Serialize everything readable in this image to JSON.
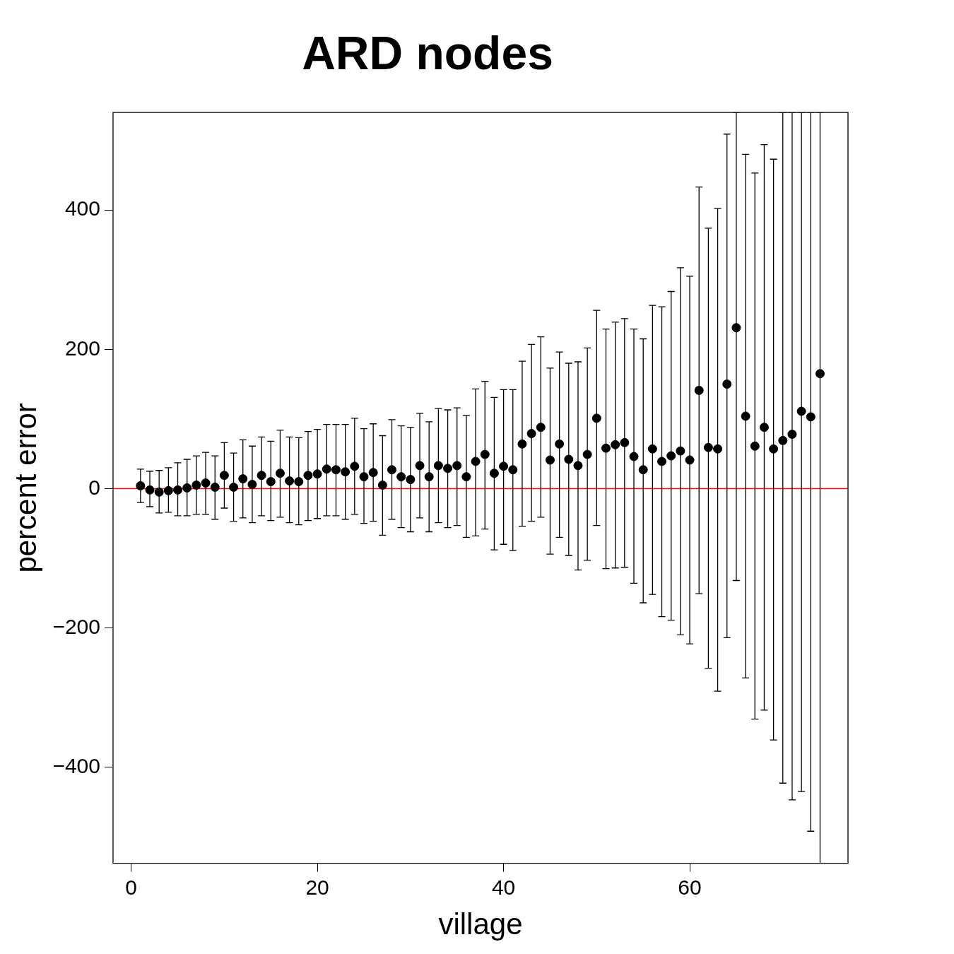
{
  "chart_data": {
    "type": "scatter",
    "title": "ARD nodes",
    "xlabel": "village",
    "ylabel": "percent error",
    "x": [
      1,
      2,
      3,
      4,
      5,
      6,
      7,
      8,
      9,
      10,
      11,
      12,
      13,
      14,
      15,
      16,
      17,
      18,
      19,
      20,
      21,
      22,
      23,
      24,
      25,
      26,
      27,
      28,
      29,
      30,
      31,
      32,
      33,
      34,
      35,
      36,
      37,
      38,
      39,
      40,
      41,
      42,
      43,
      44,
      45,
      46,
      47,
      48,
      49,
      50,
      51,
      52,
      53,
      54,
      55,
      56,
      57,
      58,
      59,
      60,
      61,
      62,
      63,
      64,
      65,
      66,
      67,
      68,
      69,
      70,
      71,
      72,
      73,
      74
    ],
    "series": [
      {
        "color": "#000000",
        "values": [
          4,
          -2,
          -5,
          -3,
          -2,
          1,
          5,
          8,
          2,
          19,
          2,
          14,
          6,
          19,
          10,
          22,
          11,
          10,
          19,
          21,
          28,
          27,
          24,
          32,
          17,
          23,
          5,
          27,
          17,
          13,
          33,
          17,
          33,
          29,
          33,
          17,
          39,
          49,
          22,
          32,
          27,
          64,
          79,
          88,
          41,
          64,
          42,
          33,
          49,
          101,
          58,
          63,
          66,
          46,
          27,
          57,
          39,
          47,
          54,
          41,
          141,
          59,
          57,
          150,
          231,
          104,
          61,
          88,
          57,
          69,
          78,
          111,
          103,
          165
        ],
        "errors": [
          [
            -20,
            28
          ],
          [
            -26,
            25
          ],
          [
            -35,
            26
          ],
          [
            -34,
            30
          ],
          [
            -39,
            37
          ],
          [
            -39,
            42
          ],
          [
            -37,
            47
          ],
          [
            -37,
            52
          ],
          [
            -44,
            47
          ],
          [
            -28,
            66
          ],
          [
            -47,
            51
          ],
          [
            -42,
            70
          ],
          [
            -49,
            61
          ],
          [
            -39,
            74
          ],
          [
            -46,
            68
          ],
          [
            -41,
            84
          ],
          [
            -49,
            74
          ],
          [
            -52,
            73
          ],
          [
            -46,
            82
          ],
          [
            -43,
            85
          ],
          [
            -39,
            92
          ],
          [
            -39,
            92
          ],
          [
            -44,
            92
          ],
          [
            -37,
            101
          ],
          [
            -50,
            86
          ],
          [
            -47,
            93
          ],
          [
            -67,
            76
          ],
          [
            -44,
            99
          ],
          [
            -56,
            90
          ],
          [
            -62,
            88
          ],
          [
            -42,
            108
          ],
          [
            -62,
            96
          ],
          [
            -49,
            115
          ],
          [
            -56,
            113
          ],
          [
            -53,
            116
          ],
          [
            -70,
            105
          ],
          [
            -68,
            143
          ],
          [
            -58,
            154
          ],
          [
            -88,
            131
          ],
          [
            -80,
            142
          ],
          [
            -89,
            142
          ],
          [
            -54,
            183
          ],
          [
            -47,
            207
          ],
          [
            -41,
            218
          ],
          [
            -94,
            173
          ],
          [
            -70,
            196
          ],
          [
            -96,
            180
          ],
          [
            -117,
            182
          ],
          [
            -103,
            202
          ],
          [
            -53,
            256
          ],
          [
            -115,
            229
          ],
          [
            -114,
            239
          ],
          [
            -113,
            244
          ],
          [
            -136,
            229
          ],
          [
            -164,
            215
          ],
          [
            -152,
            263
          ],
          [
            -184,
            261
          ],
          [
            -189,
            283
          ],
          [
            -210,
            317
          ],
          [
            -223,
            305
          ],
          [
            -151,
            433
          ],
          [
            -258,
            374
          ],
          [
            -291,
            402
          ],
          [
            -214,
            509
          ],
          [
            -132,
            540
          ],
          [
            -272,
            480
          ],
          [
            -331,
            453
          ],
          [
            -318,
            494
          ],
          [
            -361,
            473
          ],
          [
            -423,
            540
          ],
          [
            -447,
            540
          ],
          [
            -435,
            540
          ],
          [
            -492,
            540
          ],
          [
            -538,
            540
          ]
        ]
      }
    ],
    "xlim": [
      -1.95,
      77
    ],
    "xticks": [
      0,
      20,
      40,
      60
    ],
    "ylim": [
      -538,
      540
    ],
    "yticks": [
      {
        "value": -400,
        "label": "−400"
      },
      {
        "value": -200,
        "label": "−200"
      },
      0,
      200,
      400
    ],
    "ref_lines": [
      {
        "axis": "y",
        "value": 0,
        "color": "#ff0000"
      }
    ],
    "marker": "circle",
    "grid": false,
    "legend": false
  }
}
